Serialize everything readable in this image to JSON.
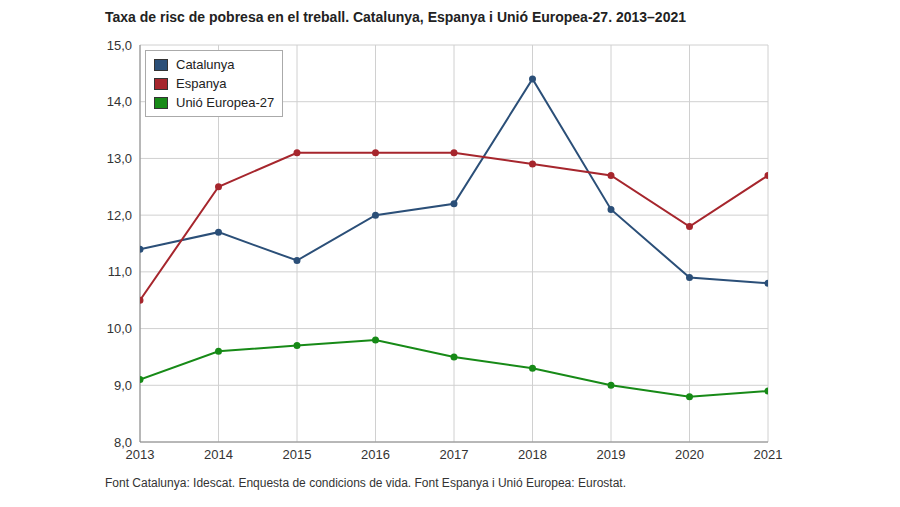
{
  "chart_data": {
    "type": "line",
    "title": "Taxa de risc de pobresa en el treball. Catalunya, Espanya i Unió Europea-27. 2013–2021",
    "source": "Font Catalunya: Idescat. Enquesta de condicions de vida. Font Espanya i Unió Europea: Eurostat.",
    "x": [
      2013,
      2014,
      2015,
      2016,
      2017,
      2018,
      2019,
      2020,
      2021
    ],
    "series": [
      {
        "name": "Catalunya",
        "color": "#2b4f78",
        "marker": "circle",
        "values": [
          11.4,
          11.7,
          11.2,
          12.0,
          12.2,
          14.4,
          12.1,
          10.9,
          10.8
        ]
      },
      {
        "name": "Espanya",
        "color": "#a6262d",
        "marker": "circle",
        "values": [
          10.5,
          12.5,
          13.1,
          13.1,
          13.1,
          12.9,
          12.7,
          11.8,
          12.7
        ]
      },
      {
        "name": "Unió Europea-27",
        "color": "#178a17",
        "marker": "circle",
        "values": [
          9.1,
          9.6,
          9.7,
          9.8,
          9.5,
          9.3,
          9.0,
          8.8,
          8.9
        ]
      }
    ],
    "xlim": [
      2013,
      2021
    ],
    "xticks": [
      2013,
      2014,
      2015,
      2016,
      2017,
      2018,
      2019,
      2020,
      2021
    ],
    "ylim": [
      8,
      15
    ],
    "yticks": [
      {
        "value": 8,
        "label": "8,0"
      },
      {
        "value": 9,
        "label": "9,0"
      },
      {
        "value": 10,
        "label": "10,0"
      },
      {
        "value": 11,
        "label": "11,0"
      },
      {
        "value": 12,
        "label": "12,0"
      },
      {
        "value": 13,
        "label": "13,0"
      },
      {
        "value": 14,
        "label": "14,0"
      },
      {
        "value": 15,
        "label": "15,0"
      }
    ],
    "grid": true,
    "legend": "upper left"
  }
}
